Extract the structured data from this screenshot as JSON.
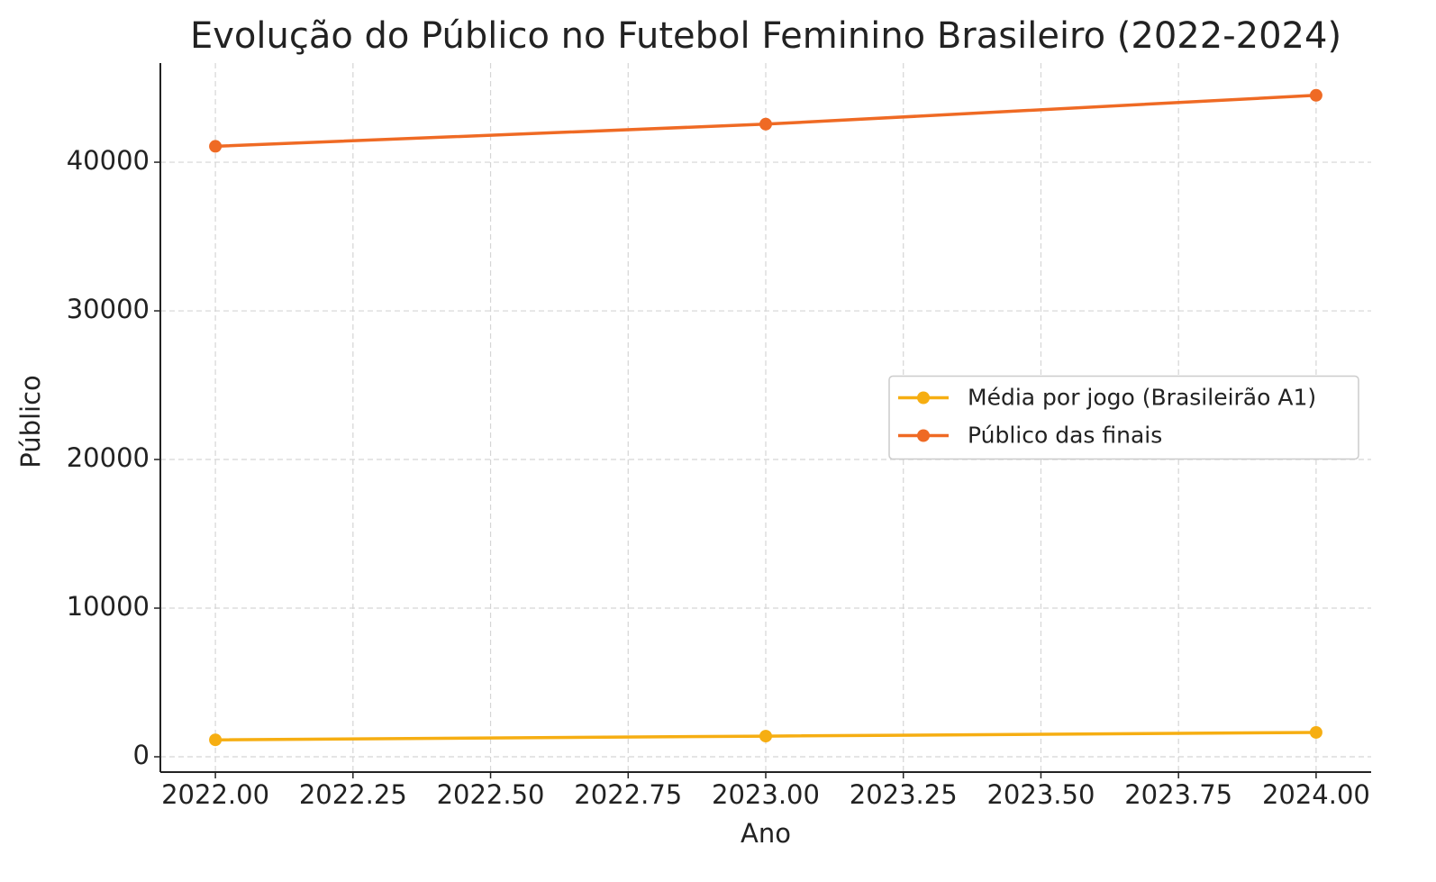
{
  "chart_data": {
    "type": "line",
    "title": "Evolução do Público no Futebol Feminino Brasileiro (2022-2024)",
    "x_label": "Ano",
    "y_label": "Público",
    "x": [
      2022,
      2023,
      2024
    ],
    "series": [
      {
        "name": "Média por jogo (Brasileirão A1)",
        "color": "#f6ae12",
        "values": [
          1140,
          1390,
          1640
        ]
      },
      {
        "name": "Público das finais",
        "color": "#ef6a24",
        "values": [
          41070,
          42560,
          44500
        ]
      }
    ],
    "xlim": [
      2021.9,
      2024.1
    ],
    "xticks": [
      {
        "value": 2022,
        "label": "2022.00"
      },
      {
        "value": 2022.25,
        "label": "2022.25"
      },
      {
        "value": 2022.5,
        "label": "2022.50"
      },
      {
        "value": 2022.75,
        "label": "2022.75"
      },
      {
        "value": 2023,
        "label": "2023.00"
      },
      {
        "value": 2023.25,
        "label": "2023.25"
      },
      {
        "value": 2023.5,
        "label": "2023.50"
      },
      {
        "value": 2023.75,
        "label": "2023.75"
      },
      {
        "value": 2024,
        "label": "2024.00"
      }
    ],
    "ylim": [
      -1030,
      46670
    ],
    "yticks": [
      0,
      10000,
      20000,
      30000,
      40000
    ],
    "grid": true,
    "legend": "center right"
  }
}
